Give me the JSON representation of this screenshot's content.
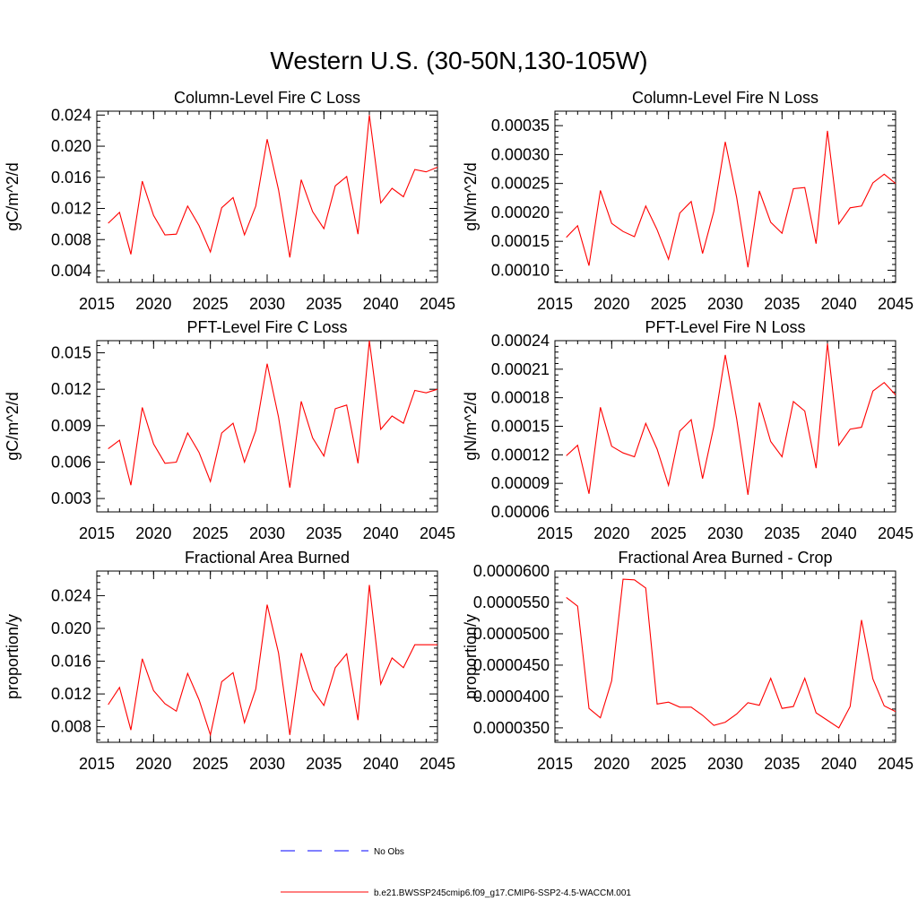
{
  "figure": {
    "title": "Western U.S. (30-50N,130-105W)",
    "legend": [
      {
        "label": "No Obs",
        "color": "#0000ff",
        "style": "dashed"
      },
      {
        "label": "b.e21.BWSSP245cmip6.f09_g17.CMIP6-SSP2-4.5-WACCM.001",
        "color": "#ff0000",
        "style": "solid"
      }
    ]
  },
  "chart_data": [
    {
      "type": "line",
      "title": "Column-Level Fire C Loss",
      "ylabel": "gC/m^2/d",
      "xlim": [
        2015,
        2045
      ],
      "ylim": [
        0.0025,
        0.0245
      ],
      "xticks": [
        "2015",
        "2020",
        "2025",
        "2030",
        "2035",
        "2040",
        "2045"
      ],
      "yticks": [
        "0.004",
        "0.008",
        "0.012",
        "0.016",
        "0.020",
        "0.024"
      ],
      "x": [
        2016,
        2017,
        2018,
        2019,
        2020,
        2021,
        2022,
        2023,
        2024,
        2025,
        2026,
        2027,
        2028,
        2029,
        2030,
        2031,
        2032,
        2033,
        2034,
        2035,
        2036,
        2037,
        2038,
        2039,
        2040,
        2041,
        2042,
        2043,
        2044,
        2045
      ],
      "series": [
        {
          "values": [
            0.0101,
            0.0115,
            0.0061,
            0.0155,
            0.0111,
            0.0086,
            0.0087,
            0.0123,
            0.0098,
            0.0064,
            0.0121,
            0.0134,
            0.0086,
            0.0123,
            0.0209,
            0.0144,
            0.0057,
            0.0157,
            0.0116,
            0.0094,
            0.0149,
            0.0161,
            0.0087,
            0.024,
            0.0127,
            0.0146,
            0.0135,
            0.017,
            0.0167,
            0.0173
          ],
          "color": "#ff0000"
        }
      ]
    },
    {
      "type": "line",
      "title": "Column-Level Fire N Loss",
      "ylabel": "gN/m^2/d",
      "xlim": [
        2015,
        2045
      ],
      "ylim": [
        7.9e-05,
        0.000375
      ],
      "xticks": [
        "2015",
        "2020",
        "2025",
        "2030",
        "2035",
        "2040",
        "2045"
      ],
      "yticks": [
        "0.00010",
        "0.00015",
        "0.00020",
        "0.00025",
        "0.00030",
        "0.00035"
      ],
      "x": [
        2016,
        2017,
        2018,
        2019,
        2020,
        2021,
        2022,
        2023,
        2024,
        2025,
        2026,
        2027,
        2028,
        2029,
        2030,
        2031,
        2032,
        2033,
        2034,
        2035,
        2036,
        2037,
        2038,
        2039,
        2040,
        2041,
        2042,
        2043,
        2044,
        2045
      ],
      "series": [
        {
          "values": [
            0.000157,
            0.000177,
            0.000108,
            0.000238,
            0.000181,
            0.000167,
            0.000158,
            0.000211,
            0.00017,
            0.000119,
            0.000199,
            0.000219,
            0.000129,
            0.000202,
            0.000322,
            0.000226,
            0.000105,
            0.000237,
            0.000183,
            0.000164,
            0.000241,
            0.000243,
            0.000146,
            0.000341,
            0.00018,
            0.000208,
            0.000211,
            0.000251,
            0.000266,
            0.00025
          ],
          "color": "#ff0000"
        }
      ]
    },
    {
      "type": "line",
      "title": "PFT-Level Fire C Loss",
      "ylabel": "gC/m^2/d",
      "xlim": [
        2015,
        2045
      ],
      "ylim": [
        0.0019,
        0.016
      ],
      "xticks": [
        "2015",
        "2020",
        "2025",
        "2030",
        "2035",
        "2040",
        "2045"
      ],
      "yticks": [
        "0.003",
        "0.006",
        "0.009",
        "0.012",
        "0.015"
      ],
      "x": [
        2016,
        2017,
        2018,
        2019,
        2020,
        2021,
        2022,
        2023,
        2024,
        2025,
        2026,
        2027,
        2028,
        2029,
        2030,
        2031,
        2032,
        2033,
        2034,
        2035,
        2036,
        2037,
        2038,
        2039,
        2040,
        2041,
        2042,
        2043,
        2044,
        2045
      ],
      "series": [
        {
          "values": [
            0.0071,
            0.0078,
            0.0041,
            0.0105,
            0.0075,
            0.0059,
            0.006,
            0.0084,
            0.0068,
            0.0044,
            0.0084,
            0.0092,
            0.006,
            0.0086,
            0.0141,
            0.0097,
            0.0039,
            0.011,
            0.008,
            0.0065,
            0.0104,
            0.0107,
            0.0059,
            0.016,
            0.0087,
            0.0098,
            0.0092,
            0.0119,
            0.0117,
            0.012
          ],
          "color": "#ff0000"
        }
      ]
    },
    {
      "type": "line",
      "title": "PFT-Level Fire N Loss",
      "ylabel": "gN/m^2/d",
      "xlim": [
        2015,
        2045
      ],
      "ylim": [
        6e-05,
        0.00024
      ],
      "xticks": [
        "2015",
        "2020",
        "2025",
        "2030",
        "2035",
        "2040",
        "2045"
      ],
      "yticks": [
        "0.00006",
        "0.00009",
        "0.00012",
        "0.00015",
        "0.00018",
        "0.00021",
        "0.00024"
      ],
      "x": [
        2016,
        2017,
        2018,
        2019,
        2020,
        2021,
        2022,
        2023,
        2024,
        2025,
        2026,
        2027,
        2028,
        2029,
        2030,
        2031,
        2032,
        2033,
        2034,
        2035,
        2036,
        2037,
        2038,
        2039,
        2040,
        2041,
        2042,
        2043,
        2044,
        2045
      ],
      "series": [
        {
          "values": [
            0.000119,
            0.00013,
            7.9e-05,
            0.00017,
            0.000129,
            0.000122,
            0.000118,
            0.000153,
            0.000126,
            8.8e-05,
            0.000145,
            0.000157,
            9.5e-05,
            0.00015,
            0.000225,
            0.000158,
            7.8e-05,
            0.000175,
            0.000134,
            0.000118,
            0.000176,
            0.000166,
            0.000106,
            0.000237,
            0.00013,
            0.000147,
            0.000149,
            0.000187,
            0.000196,
            0.000183
          ],
          "color": "#ff0000"
        }
      ]
    },
    {
      "type": "line",
      "title": "Fractional Area Burned",
      "ylabel": "proportion/y",
      "xlim": [
        2015,
        2045
      ],
      "ylim": [
        0.0061,
        0.027
      ],
      "xticks": [
        "2015",
        "2020",
        "2025",
        "2030",
        "2035",
        "2040",
        "2045"
      ],
      "yticks": [
        "0.008",
        "0.012",
        "0.016",
        "0.020",
        "0.024"
      ],
      "x": [
        2016,
        2017,
        2018,
        2019,
        2020,
        2021,
        2022,
        2023,
        2024,
        2025,
        2026,
        2027,
        2028,
        2029,
        2030,
        2031,
        2032,
        2033,
        2034,
        2035,
        2036,
        2037,
        2038,
        2039,
        2040,
        2041,
        2042,
        2043,
        2044,
        2045
      ],
      "series": [
        {
          "values": [
            0.0107,
            0.0128,
            0.0076,
            0.0163,
            0.0124,
            0.0108,
            0.0099,
            0.0145,
            0.0113,
            0.007,
            0.0135,
            0.0146,
            0.0085,
            0.0126,
            0.0229,
            0.017,
            0.007,
            0.017,
            0.0125,
            0.0106,
            0.0152,
            0.0169,
            0.0088,
            0.0253,
            0.0132,
            0.0164,
            0.0152,
            0.018,
            0.018,
            0.018
          ],
          "color": "#ff0000"
        }
      ]
    },
    {
      "type": "line",
      "title": "Fractional Area Burned - Crop",
      "ylabel": "proportion/y",
      "xlim": [
        2015,
        2045
      ],
      "ylim": [
        3.27e-05,
        6e-05
      ],
      "xticks": [
        "2015",
        "2020",
        "2025",
        "2030",
        "2035",
        "2040",
        "2045"
      ],
      "yticks": [
        "0.0000350",
        "0.0000400",
        "0.0000450",
        "0.0000500",
        "0.0000550",
        "0.0000600"
      ],
      "x": [
        2016,
        2017,
        2018,
        2019,
        2020,
        2021,
        2022,
        2023,
        2024,
        2025,
        2026,
        2027,
        2028,
        2029,
        2030,
        2031,
        2032,
        2033,
        2034,
        2035,
        2036,
        2037,
        2038,
        2039,
        2040,
        2041,
        2042,
        2043,
        2044,
        2045
      ],
      "series": [
        {
          "values": [
            5.58e-05,
            5.44e-05,
            3.81e-05,
            3.66e-05,
            4.25e-05,
            5.87e-05,
            5.86e-05,
            5.73e-05,
            3.88e-05,
            3.91e-05,
            3.83e-05,
            3.83e-05,
            3.7e-05,
            3.54e-05,
            3.59e-05,
            3.72e-05,
            3.9e-05,
            3.86e-05,
            4.29e-05,
            3.81e-05,
            3.84e-05,
            4.29e-05,
            3.74e-05,
            3.62e-05,
            3.5e-05,
            3.84e-05,
            5.22e-05,
            4.28e-05,
            3.85e-05,
            3.76e-05
          ],
          "color": "#ff0000"
        }
      ]
    }
  ]
}
